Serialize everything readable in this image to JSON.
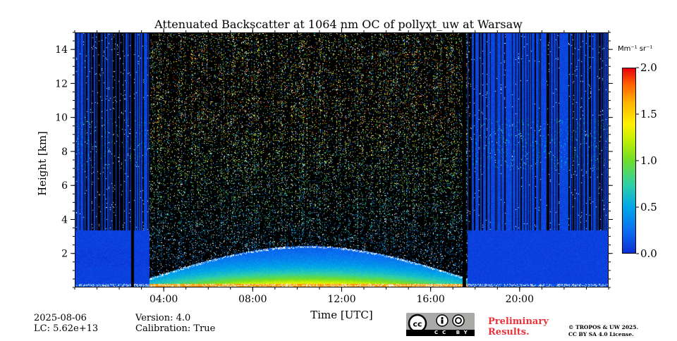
{
  "title": "Attenuated Backscatter at 1064 nm OC of pollyxt_uw at Warsaw",
  "chart_data": {
    "type": "heatmap",
    "title": "Attenuated Backscatter at 1064 nm OC of pollyxt_uw at Warsaw",
    "xlabel": "Time [UTC]",
    "ylabel": "Height [km]",
    "x_ticks": [
      "04:00",
      "08:00",
      "12:00",
      "16:00",
      "20:00"
    ],
    "x_tick_hours": [
      4,
      8,
      12,
      16,
      20
    ],
    "xlim_hours": [
      0,
      24
    ],
    "y_ticks": [
      "2",
      "4",
      "6",
      "8",
      "10",
      "12",
      "14"
    ],
    "y_tick_values": [
      2,
      4,
      6,
      8,
      10,
      12,
      14
    ],
    "ylim_km": [
      0,
      15
    ],
    "colorbar": {
      "unit": "Mm⁻¹ sr⁻¹",
      "ticks": [
        "0.0",
        "0.5",
        "1.0",
        "1.5",
        "2.0"
      ],
      "range": [
        0,
        2.0
      ]
    },
    "features": [
      {
        "name": "data-gap",
        "start_h": 2.5,
        "end_h": 2.6
      },
      {
        "name": "data-gap",
        "start_h": 17.4,
        "end_h": 17.55
      },
      {
        "name": "boundary-layer-top-max-km",
        "value": 2.5
      }
    ]
  },
  "footer": {
    "date": "2025-08-06",
    "lc": "LC: 5.62e+13",
    "version": "Version: 4.0",
    "calibration": "Calibration: True",
    "prelim_line1": "Preliminary",
    "prelim_line2": "Results.",
    "copyright_line1": "© TROPOS & UW 2025.",
    "copyright_line2": "CC BY SA 4.0 License.",
    "cc_label": "CC BY SA"
  },
  "colors": {
    "low": "#0b2fd6",
    "high": "#e8000c",
    "prelim": "#e8333a"
  }
}
